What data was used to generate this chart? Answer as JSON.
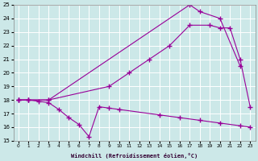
{
  "xlabel": "Windchill (Refroidissement éolien,°C)",
  "bg_color": "#cce8e8",
  "line_color": "#990099",
  "grid_color": "#ffffff",
  "xlim": [
    -0.5,
    23.5
  ],
  "ylim": [
    15,
    25
  ],
  "xticks": [
    0,
    1,
    2,
    3,
    4,
    5,
    6,
    7,
    8,
    9,
    10,
    11,
    12,
    13,
    14,
    15,
    16,
    17,
    18,
    19,
    20,
    21,
    22,
    23
  ],
  "yticks": [
    15,
    16,
    17,
    18,
    19,
    20,
    21,
    22,
    23,
    24,
    25
  ],
  "line1_x": [
    0,
    1,
    3,
    17,
    18,
    20,
    22
  ],
  "line1_y": [
    18,
    18,
    18,
    25.0,
    24.5,
    24.0,
    20.5
  ],
  "line2_x": [
    0,
    1,
    3,
    9,
    11,
    13,
    15,
    17,
    19,
    20,
    21,
    22,
    23
  ],
  "line2_y": [
    18,
    18,
    18,
    19.0,
    20.0,
    21.0,
    22.0,
    23.5,
    23.5,
    23.3,
    23.3,
    21.0,
    17.5
  ],
  "line3_x": [
    0,
    1,
    2,
    3,
    4,
    5,
    6,
    7,
    8,
    9,
    10,
    14,
    16,
    18,
    20,
    22,
    23
  ],
  "line3_y": [
    18,
    18,
    17.9,
    17.8,
    17.3,
    16.7,
    16.2,
    15.3,
    17.5,
    17.4,
    17.3,
    16.9,
    16.7,
    16.5,
    16.3,
    16.1,
    16.0
  ]
}
